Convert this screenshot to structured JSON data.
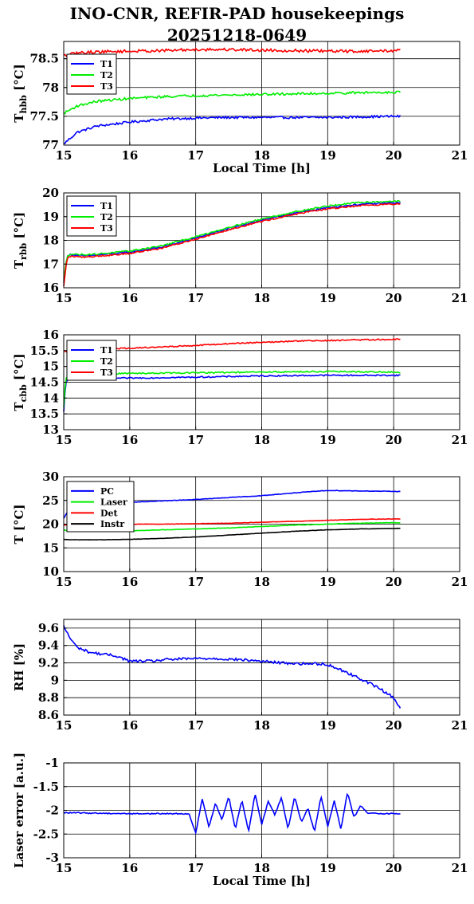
{
  "title_line1": "INO-CNR, REFIR-PAD housekeepings",
  "title_line2": "20251218-0649",
  "chart_data": [
    {
      "type": "line",
      "ylabel": {
        "main": "T",
        "sub": "hbb",
        "unit": " [°C]"
      },
      "xlabel": "Local Time [h]",
      "xlim": [
        15,
        21
      ],
      "ylim": [
        77,
        78.8
      ],
      "yticks": [
        77,
        77.5,
        78,
        78.5
      ],
      "ytick_labels": [
        "77",
        "77.5",
        "78",
        "78.5"
      ],
      "xticks": [
        15,
        16,
        17,
        18,
        19,
        20,
        21
      ],
      "xtick_labels": [
        "15",
        "16",
        "17",
        "18",
        "19",
        "20",
        "21"
      ],
      "legend": "top-left",
      "series": [
        {
          "name": "T1",
          "color": "#0000ff",
          "noise": 0.02,
          "x": [
            15.0,
            15.2,
            15.5,
            16.0,
            16.5,
            17.0,
            17.5,
            18.0,
            18.5,
            19.0,
            19.5,
            20.0,
            20.1
          ],
          "y": [
            77.02,
            77.22,
            77.33,
            77.4,
            77.45,
            77.47,
            77.48,
            77.48,
            77.48,
            77.48,
            77.49,
            77.5,
            77.5
          ]
        },
        {
          "name": "T2",
          "color": "#00ee00",
          "noise": 0.02,
          "x": [
            15.0,
            15.2,
            15.5,
            16.0,
            16.5,
            17.0,
            17.5,
            18.0,
            18.5,
            19.0,
            19.5,
            20.0,
            20.1
          ],
          "y": [
            77.55,
            77.68,
            77.76,
            77.81,
            77.84,
            77.86,
            77.87,
            77.88,
            77.89,
            77.9,
            77.91,
            77.92,
            77.92
          ]
        },
        {
          "name": "T3",
          "color": "#ff0000",
          "noise": 0.025,
          "x": [
            15.0,
            15.2,
            15.5,
            16.0,
            16.5,
            17.0,
            17.5,
            18.0,
            18.5,
            19.0,
            19.5,
            20.0,
            20.1
          ],
          "y": [
            78.55,
            78.6,
            78.62,
            78.63,
            78.64,
            78.66,
            78.66,
            78.65,
            78.64,
            78.63,
            78.63,
            78.64,
            78.65
          ]
        }
      ]
    },
    {
      "type": "line",
      "ylabel": {
        "main": "T",
        "sub": "rbb",
        "unit": " [°C]"
      },
      "xlabel": "",
      "xlim": [
        15,
        21
      ],
      "ylim": [
        16,
        20
      ],
      "yticks": [
        16,
        17,
        18,
        19,
        20
      ],
      "ytick_labels": [
        "16",
        "17",
        "18",
        "19",
        "20"
      ],
      "xticks": [
        15,
        16,
        17,
        18,
        19,
        20,
        21
      ],
      "xtick_labels": [
        "15",
        "16",
        "17",
        "18",
        "19",
        "20",
        "21"
      ],
      "legend": "top-left",
      "series": [
        {
          "name": "T1",
          "color": "#0000ff",
          "noise": 0.03,
          "x": [
            15.0,
            15.05,
            15.1,
            15.3,
            15.5,
            16.0,
            16.5,
            17.0,
            17.5,
            18.0,
            18.5,
            19.0,
            19.5,
            20.0,
            20.1
          ],
          "y": [
            16.2,
            17.3,
            17.4,
            17.35,
            17.38,
            17.5,
            17.72,
            18.1,
            18.5,
            18.85,
            19.15,
            19.38,
            19.52,
            19.58,
            19.58
          ]
        },
        {
          "name": "T2",
          "color": "#00ee00",
          "noise": 0.03,
          "x": [
            15.0,
            15.05,
            15.1,
            15.3,
            15.5,
            16.0,
            16.5,
            17.0,
            17.5,
            18.0,
            18.5,
            19.0,
            19.5,
            20.0,
            20.1
          ],
          "y": [
            16.3,
            17.35,
            17.42,
            17.4,
            17.42,
            17.55,
            17.78,
            18.15,
            18.55,
            18.9,
            19.2,
            19.45,
            19.6,
            19.65,
            19.65
          ]
        },
        {
          "name": "T3",
          "color": "#ff0000",
          "noise": 0.03,
          "x": [
            15.0,
            15.05,
            15.1,
            15.3,
            15.5,
            16.0,
            16.5,
            17.0,
            17.5,
            18.0,
            18.5,
            19.0,
            19.5,
            20.0,
            20.1
          ],
          "y": [
            16.05,
            17.25,
            17.32,
            17.3,
            17.33,
            17.45,
            17.68,
            18.05,
            18.45,
            18.8,
            19.1,
            19.33,
            19.47,
            19.53,
            19.53
          ]
        }
      ]
    },
    {
      "type": "line",
      "ylabel": {
        "main": "T",
        "sub": "cbb",
        "unit": " [°C]"
      },
      "xlabel": "",
      "xlim": [
        15,
        21
      ],
      "ylim": [
        13,
        16
      ],
      "yticks": [
        13,
        13.5,
        14,
        14.5,
        15,
        15.5,
        16
      ],
      "ytick_labels": [
        "13",
        "13.5",
        "14",
        "14.5",
        "15",
        "15.5",
        "16"
      ],
      "xticks": [
        15,
        16,
        17,
        18,
        19,
        20,
        21
      ],
      "xtick_labels": [
        "15",
        "16",
        "17",
        "18",
        "19",
        "20",
        "21"
      ],
      "legend": "top-left",
      "series": [
        {
          "name": "T1",
          "color": "#0000ff",
          "noise": 0.02,
          "x": [
            15.0,
            15.03,
            15.08,
            15.3,
            16.0,
            17.0,
            18.0,
            19.0,
            20.0,
            20.1
          ],
          "y": [
            13.55,
            14.5,
            14.6,
            14.62,
            14.63,
            14.66,
            14.7,
            14.72,
            14.72,
            14.72
          ]
        },
        {
          "name": "T2",
          "color": "#00ee00",
          "noise": 0.02,
          "x": [
            15.0,
            15.03,
            15.08,
            15.3,
            16.0,
            17.0,
            18.0,
            19.0,
            20.0,
            20.1
          ],
          "y": [
            13.7,
            14.6,
            14.72,
            14.76,
            14.78,
            14.8,
            14.82,
            14.84,
            14.82,
            14.8
          ]
        },
        {
          "name": "T3",
          "color": "#ff0000",
          "noise": 0.02,
          "x": [
            15.0,
            15.3,
            16.0,
            16.5,
            17.0,
            17.5,
            18.0,
            18.5,
            19.0,
            19.5,
            20.0,
            20.1
          ],
          "y": [
            15.48,
            15.52,
            15.58,
            15.62,
            15.66,
            15.72,
            15.76,
            15.8,
            15.82,
            15.84,
            15.86,
            15.86
          ]
        }
      ]
    },
    {
      "type": "line",
      "ylabel": {
        "main": "T [°C]",
        "sub": "",
        "unit": ""
      },
      "xlabel": "",
      "xlim": [
        15,
        21
      ],
      "ylim": [
        10,
        30
      ],
      "yticks": [
        10,
        15,
        20,
        25,
        30
      ],
      "ytick_labels": [
        "10",
        "15",
        "20",
        "25",
        "30"
      ],
      "xticks": [
        15,
        16,
        17,
        18,
        19,
        20,
        21
      ],
      "xtick_labels": [
        "15",
        "16",
        "17",
        "18",
        "19",
        "20",
        "21"
      ],
      "legend": "top-left",
      "series": [
        {
          "name": "PC",
          "color": "#0000ff",
          "noise": 0.05,
          "x": [
            15.0,
            15.1,
            15.5,
            16.0,
            16.5,
            17.0,
            17.5,
            18.0,
            18.5,
            19.0,
            19.5,
            20.0,
            20.1
          ],
          "y": [
            21.2,
            23.6,
            24.2,
            24.6,
            24.9,
            25.2,
            25.6,
            26.0,
            26.6,
            27.1,
            27.0,
            26.9,
            26.9
          ]
        },
        {
          "name": "Laser",
          "color": "#00ee00",
          "noise": 0.05,
          "x": [
            15.0,
            15.1,
            15.5,
            16.0,
            16.5,
            17.0,
            17.5,
            18.0,
            18.5,
            19.0,
            19.5,
            20.0,
            20.1
          ],
          "y": [
            18.8,
            18.5,
            18.5,
            18.6,
            18.8,
            19.0,
            19.2,
            19.5,
            19.8,
            20.0,
            20.2,
            20.3,
            20.3
          ]
        },
        {
          "name": "Det",
          "color": "#ff0000",
          "noise": 0.04,
          "x": [
            15.0,
            15.1,
            15.5,
            16.0,
            16.5,
            17.0,
            17.5,
            18.0,
            18.5,
            19.0,
            19.5,
            20.0,
            20.1
          ],
          "y": [
            19.8,
            19.9,
            19.9,
            20.0,
            20.0,
            20.1,
            20.2,
            20.4,
            20.6,
            20.8,
            21.0,
            21.1,
            21.1
          ]
        },
        {
          "name": "Instr",
          "color": "#000000",
          "noise": 0.03,
          "x": [
            15.0,
            15.1,
            15.5,
            16.0,
            16.5,
            17.0,
            17.5,
            18.0,
            18.5,
            19.0,
            19.5,
            20.0,
            20.1
          ],
          "y": [
            16.8,
            16.7,
            16.7,
            16.8,
            17.0,
            17.3,
            17.7,
            18.1,
            18.5,
            18.8,
            19.0,
            19.1,
            19.1
          ]
        }
      ]
    },
    {
      "type": "line",
      "ylabel": {
        "main": "RH [%]",
        "sub": "",
        "unit": ""
      },
      "xlabel": "",
      "xlim": [
        15,
        21
      ],
      "ylim": [
        8.6,
        9.7
      ],
      "yticks": [
        8.6,
        8.8,
        9,
        9.2,
        9.4,
        9.6
      ],
      "ytick_labels": [
        "8.6",
        "8.8",
        "9",
        "9.2",
        "9.4",
        "9.6"
      ],
      "xticks": [
        15,
        16,
        17,
        18,
        19,
        20,
        21
      ],
      "xtick_labels": [
        "15",
        "16",
        "17",
        "18",
        "19",
        "20",
        "21"
      ],
      "legend": "none",
      "series": [
        {
          "name": "",
          "color": "#0000ff",
          "noise": 0.015,
          "x": [
            15.0,
            15.1,
            15.2,
            15.4,
            15.6,
            15.8,
            16.0,
            16.3,
            16.6,
            17.0,
            17.3,
            17.6,
            18.0,
            18.3,
            18.6,
            18.9,
            19.0,
            19.2,
            19.4,
            19.6,
            19.8,
            20.0,
            20.1
          ],
          "y": [
            9.62,
            9.48,
            9.38,
            9.32,
            9.3,
            9.28,
            9.22,
            9.22,
            9.24,
            9.25,
            9.25,
            9.24,
            9.22,
            9.2,
            9.19,
            9.19,
            9.18,
            9.12,
            9.05,
            8.98,
            8.9,
            8.8,
            8.68
          ]
        }
      ]
    },
    {
      "type": "line",
      "ylabel": {
        "main": "Laser error [a.u.]",
        "sub": "",
        "unit": ""
      },
      "xlabel": "Local Time [h]",
      "xlim": [
        15,
        21
      ],
      "ylim": [
        -3,
        -1
      ],
      "yticks": [
        -3,
        -2.5,
        -2,
        -1.5,
        -1
      ],
      "ytick_labels": [
        "-3",
        "-2.5",
        "-2",
        "-1.5",
        "-1"
      ],
      "xticks": [
        15,
        16,
        17,
        18,
        19,
        20,
        21
      ],
      "xtick_labels": [
        "15",
        "16",
        "17",
        "18",
        "19",
        "20",
        "21"
      ],
      "legend": "none",
      "series": [
        {
          "name": "",
          "color": "#0000ff",
          "noise": 0.012,
          "x": [
            15.0,
            16.0,
            16.9,
            16.95,
            17.0,
            17.1,
            17.2,
            17.3,
            17.4,
            17.5,
            17.6,
            17.7,
            17.8,
            17.9,
            18.0,
            18.1,
            18.2,
            18.3,
            18.4,
            18.5,
            18.6,
            18.7,
            18.8,
            18.9,
            19.0,
            19.1,
            19.2,
            19.3,
            19.4,
            19.5,
            19.6,
            20.0,
            20.1
          ],
          "y": [
            -2.05,
            -2.07,
            -2.07,
            -2.3,
            -2.48,
            -1.75,
            -2.35,
            -1.85,
            -2.2,
            -1.7,
            -2.4,
            -1.78,
            -2.45,
            -1.65,
            -2.3,
            -1.8,
            -2.1,
            -1.72,
            -2.4,
            -1.7,
            -2.25,
            -1.95,
            -2.45,
            -1.7,
            -2.35,
            -1.8,
            -2.4,
            -1.62,
            -2.15,
            -1.9,
            -2.06,
            -2.07,
            -2.07
          ]
        }
      ]
    }
  ]
}
